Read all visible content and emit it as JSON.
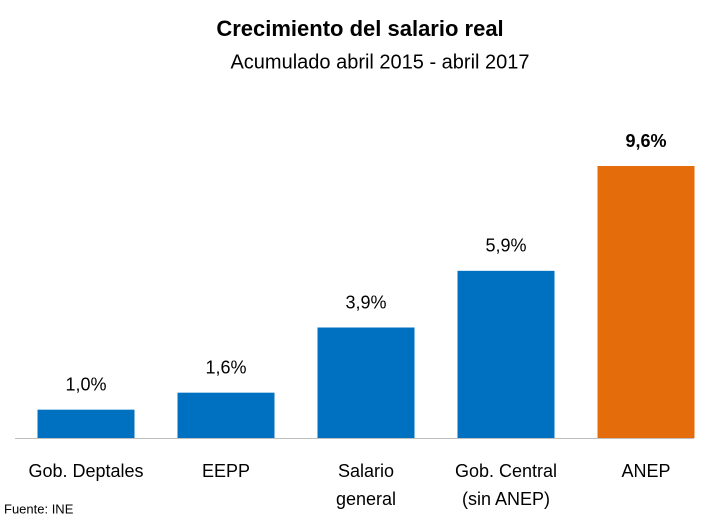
{
  "chart_data": {
    "type": "bar",
    "title": "Crecimiento del salario real",
    "subtitle": "Acumulado abril 2015 - abril 2017",
    "categories": [
      [
        "Gob. Deptales"
      ],
      [
        "EEPP"
      ],
      [
        "Salario",
        "general"
      ],
      [
        "Gob. Central",
        "(sin ANEP)"
      ],
      [
        "ANEP"
      ]
    ],
    "values": [
      1.0,
      1.6,
      3.9,
      5.9,
      9.6
    ],
    "value_labels": [
      "1,0%",
      "1,6%",
      "3,9%",
      "5,9%",
      "9,6%"
    ],
    "colors": [
      "#0070c0",
      "#0070c0",
      "#0070c0",
      "#0070c0",
      "#e46c0a"
    ],
    "source": "Fuente: INE"
  }
}
